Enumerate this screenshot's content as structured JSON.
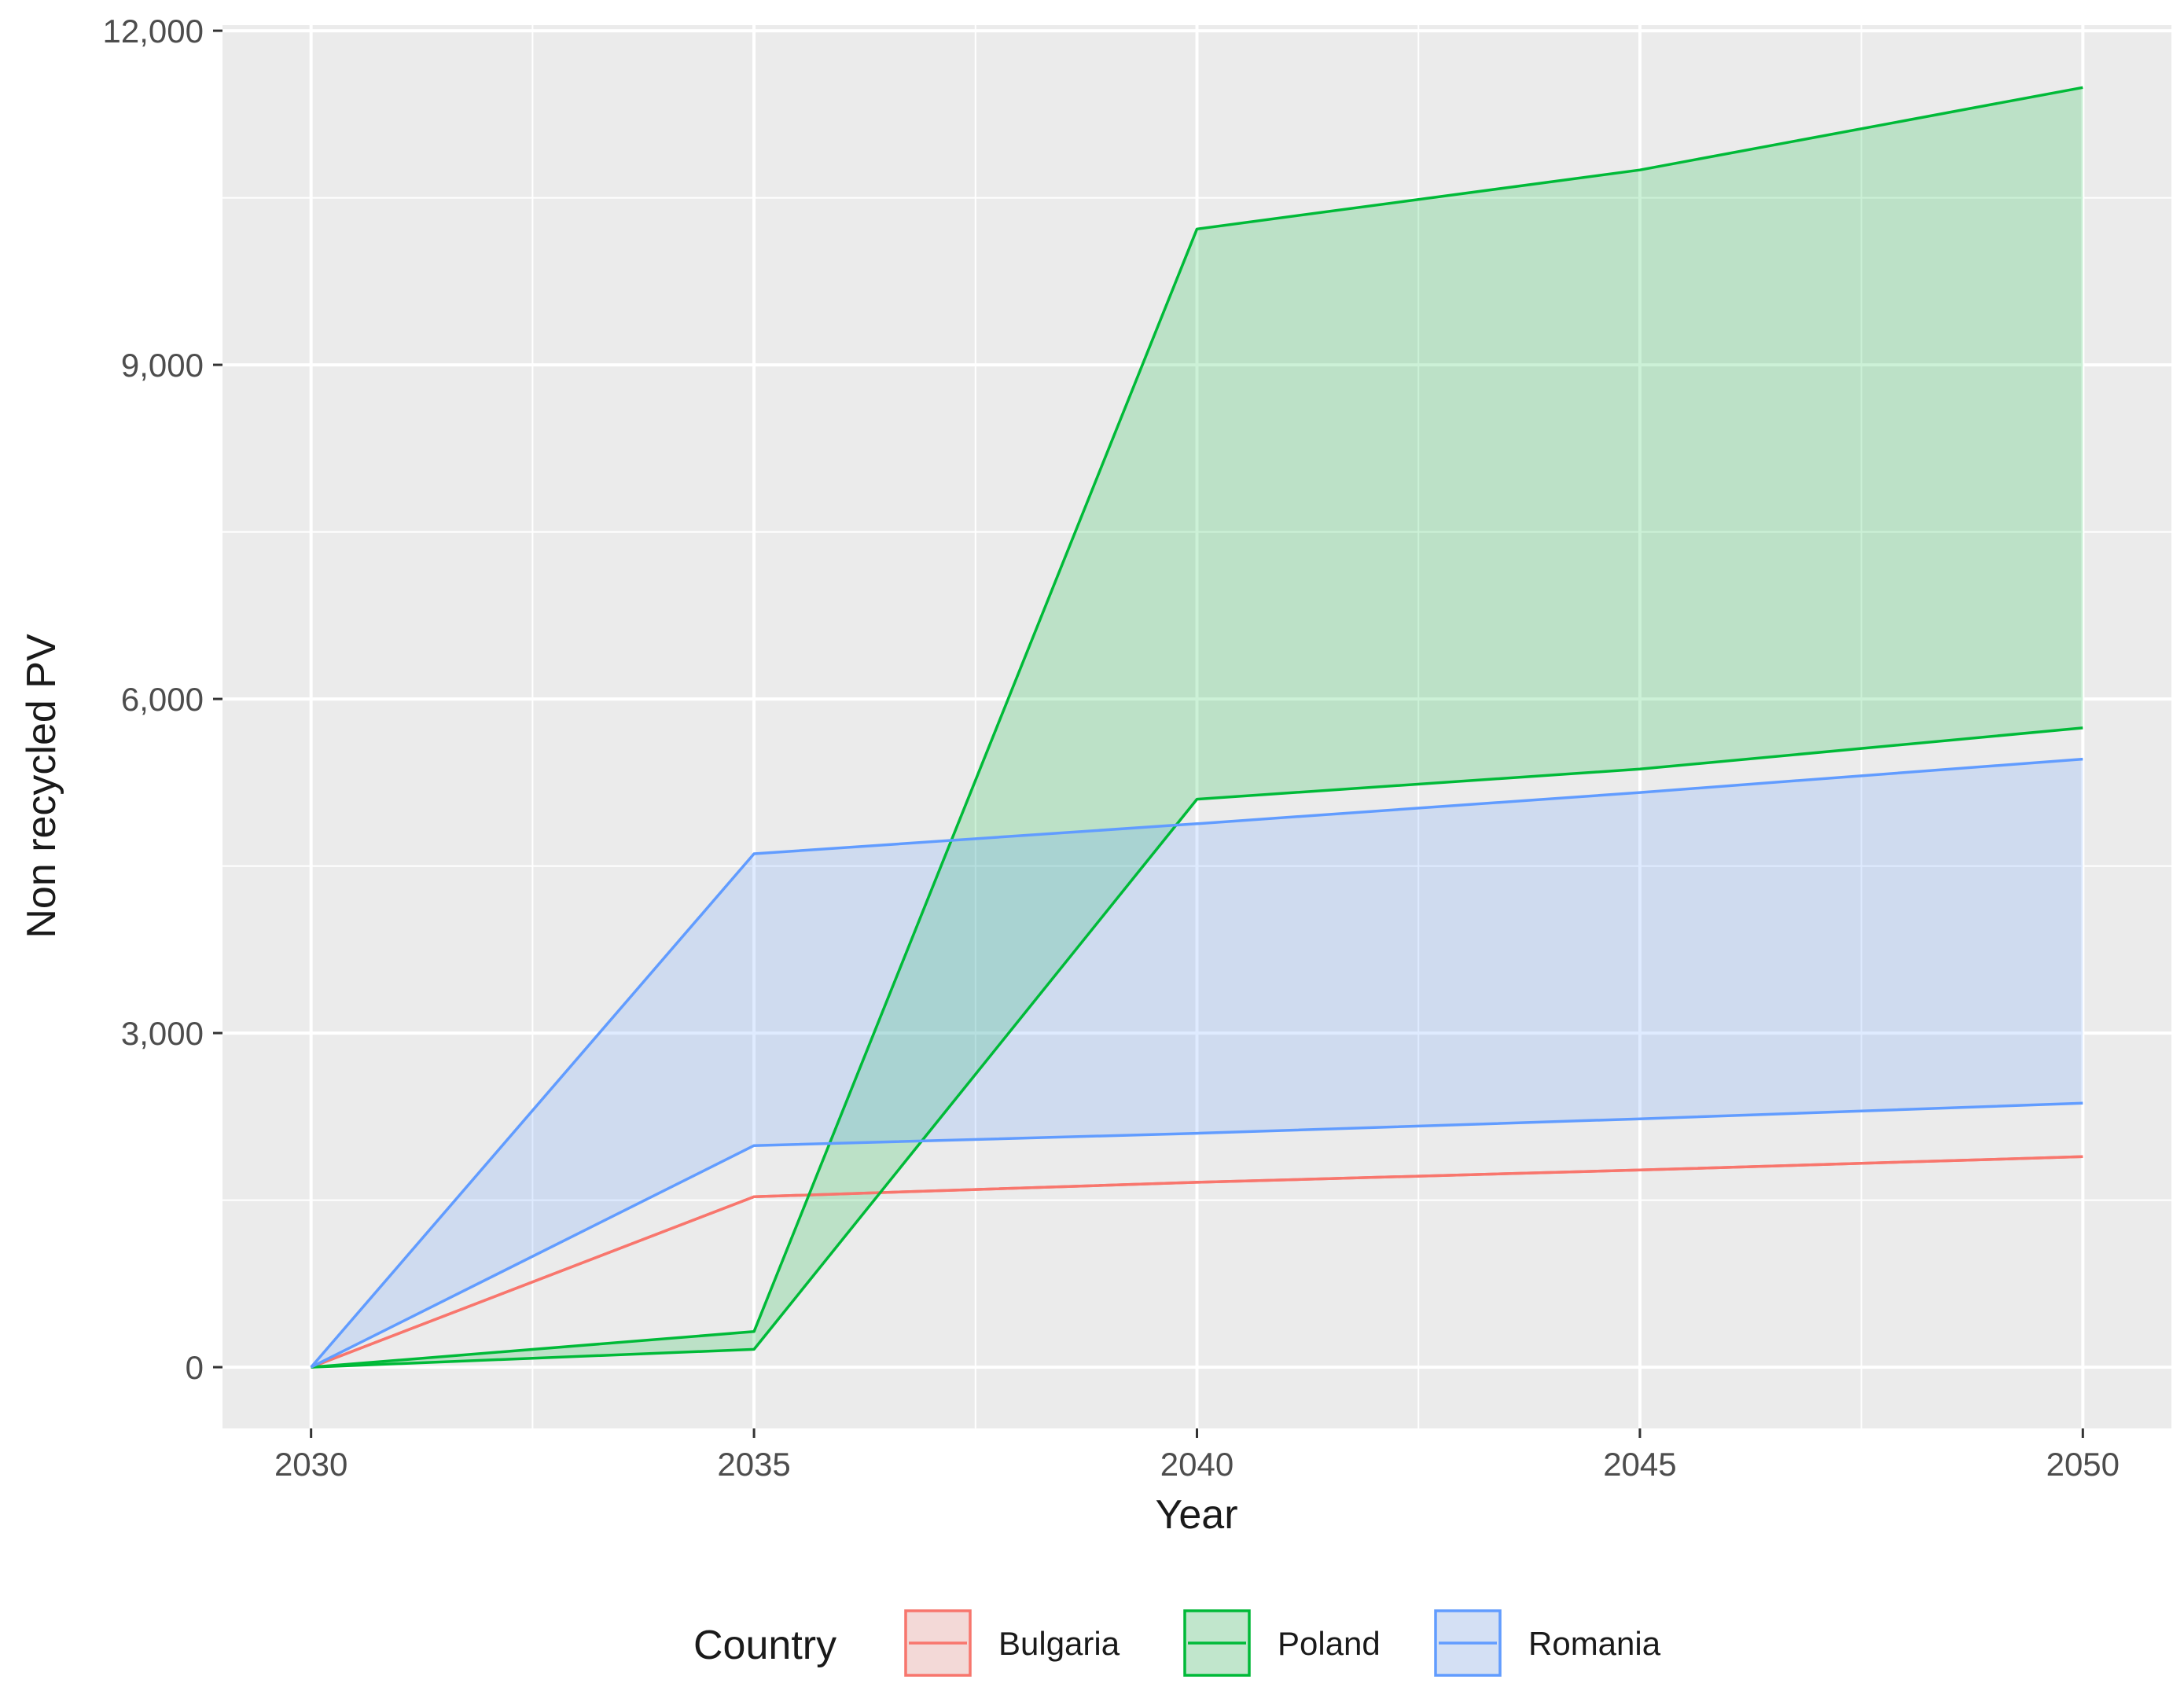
{
  "chart_data": {
    "type": "area",
    "title": "",
    "xlabel": "Year",
    "ylabel": "Non recycled PV",
    "x": [
      2030,
      2035,
      2040,
      2045,
      2050
    ],
    "xlim": [
      2029,
      2051
    ],
    "ylim": [
      -550,
      12050
    ],
    "x_ticks": [
      2030,
      2035,
      2040,
      2045,
      2050
    ],
    "x_tick_labels": [
      "2030",
      "2035",
      "2040",
      "2045",
      "2050"
    ],
    "y_ticks": [
      0,
      3000,
      6000,
      9000,
      12000
    ],
    "y_tick_labels": [
      "0",
      "3,000",
      "6,000",
      "9,000",
      "12,000"
    ],
    "grid": true,
    "legend": {
      "title": "Country",
      "position": "bottom"
    },
    "series": [
      {
        "name": "Bulgaria",
        "color": "#F8766D",
        "lower": [
          0,
          1530,
          1660,
          1770,
          1890
        ],
        "upper": [
          0,
          1530,
          1660,
          1770,
          1890
        ]
      },
      {
        "name": "Poland",
        "color": "#00BA38",
        "lower": [
          0,
          160,
          5100,
          5370,
          5740
        ],
        "upper": [
          0,
          320,
          10220,
          10750,
          11490
        ]
      },
      {
        "name": "Romania",
        "color": "#619CFF",
        "lower": [
          0,
          1990,
          2100,
          2230,
          2370
        ],
        "upper": [
          0,
          4610,
          4880,
          5160,
          5460
        ]
      }
    ]
  }
}
